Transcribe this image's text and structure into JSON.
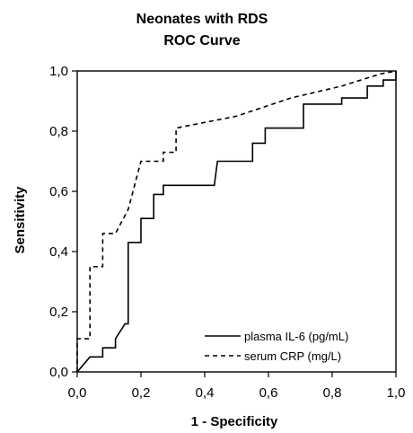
{
  "chart_data": {
    "type": "line",
    "title": "Neonates with RDS",
    "subtitle": "ROC Curve",
    "xlabel": "1 - Specificity",
    "ylabel": "Sensitivity",
    "xlim": [
      0,
      1
    ],
    "ylim": [
      0,
      1
    ],
    "x_ticks": [
      {
        "value": 0.0,
        "label": "0,0"
      },
      {
        "value": 0.2,
        "label": "0,2"
      },
      {
        "value": 0.4,
        "label": "0,4"
      },
      {
        "value": 0.6,
        "label": "0,6"
      },
      {
        "value": 0.8,
        "label": "0,8"
      },
      {
        "value": 1.0,
        "label": "1,0"
      }
    ],
    "y_ticks": [
      {
        "value": 0.0,
        "label": "0,0"
      },
      {
        "value": 0.2,
        "label": "0,2"
      },
      {
        "value": 0.4,
        "label": "0,4"
      },
      {
        "value": 0.6,
        "label": "0,6"
      },
      {
        "value": 0.8,
        "label": "0,8"
      },
      {
        "value": 1.0,
        "label": "1,0"
      }
    ],
    "grid": false,
    "legend_position": "bottom-right",
    "series": [
      {
        "name": "plasma IL-6 (pg/mL)",
        "line_style": "solid",
        "color": "#000000",
        "points": [
          [
            0.0,
            0.0
          ],
          [
            0.04,
            0.05
          ],
          [
            0.08,
            0.05
          ],
          [
            0.08,
            0.08
          ],
          [
            0.12,
            0.08
          ],
          [
            0.12,
            0.11
          ],
          [
            0.15,
            0.16
          ],
          [
            0.16,
            0.16
          ],
          [
            0.16,
            0.43
          ],
          [
            0.2,
            0.43
          ],
          [
            0.2,
            0.51
          ],
          [
            0.24,
            0.51
          ],
          [
            0.24,
            0.59
          ],
          [
            0.27,
            0.59
          ],
          [
            0.27,
            0.62
          ],
          [
            0.43,
            0.62
          ],
          [
            0.44,
            0.7
          ],
          [
            0.55,
            0.7
          ],
          [
            0.55,
            0.76
          ],
          [
            0.59,
            0.76
          ],
          [
            0.59,
            0.81
          ],
          [
            0.71,
            0.81
          ],
          [
            0.71,
            0.89
          ],
          [
            0.83,
            0.89
          ],
          [
            0.83,
            0.91
          ],
          [
            0.91,
            0.91
          ],
          [
            0.91,
            0.95
          ],
          [
            0.96,
            0.95
          ],
          [
            0.96,
            0.97
          ],
          [
            1.0,
            0.97
          ],
          [
            1.0,
            1.0
          ]
        ]
      },
      {
        "name": "serum CRP (mg/L)",
        "line_style": "dashed",
        "color": "#000000",
        "points": [
          [
            0.0,
            0.0
          ],
          [
            0.0,
            0.11
          ],
          [
            0.04,
            0.11
          ],
          [
            0.04,
            0.35
          ],
          [
            0.08,
            0.35
          ],
          [
            0.08,
            0.46
          ],
          [
            0.12,
            0.46
          ],
          [
            0.16,
            0.54
          ],
          [
            0.2,
            0.7
          ],
          [
            0.27,
            0.7
          ],
          [
            0.27,
            0.73
          ],
          [
            0.31,
            0.73
          ],
          [
            0.31,
            0.81
          ],
          [
            0.5,
            0.85
          ],
          [
            0.67,
            0.91
          ],
          [
            0.83,
            0.95
          ],
          [
            0.95,
            0.99
          ],
          [
            1.0,
            1.0
          ]
        ]
      }
    ]
  }
}
